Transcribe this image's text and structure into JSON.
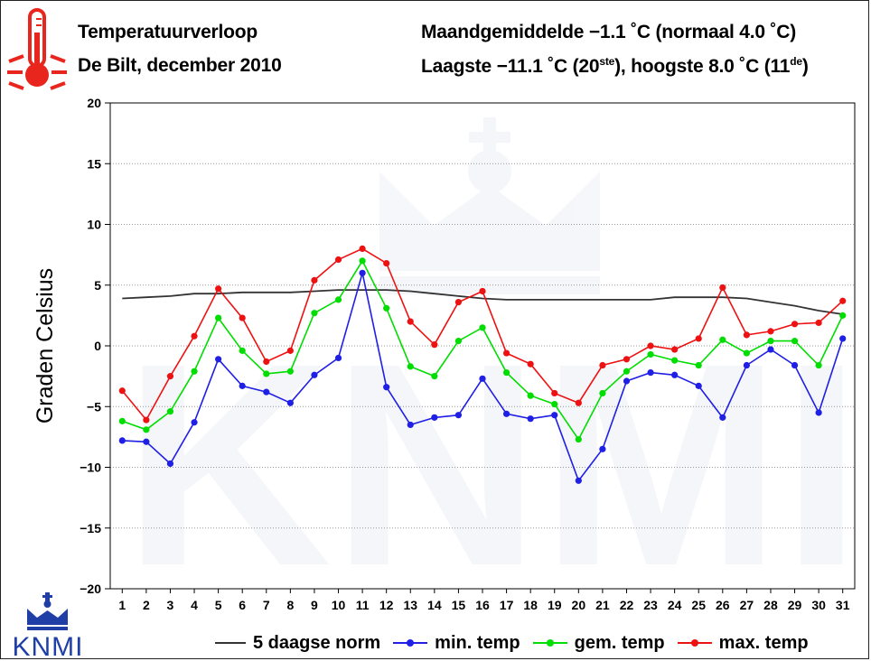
{
  "header": {
    "title": "Temperatuurverloop",
    "subtitle": "De Bilt, december 2010",
    "stats_line1": "Maandgemiddelde −1.1 ˚C (normaal 4.0 ˚C)",
    "stats_line2_pre": "Laagste −11.1 ˚C (20",
    "stats_line2_sup1": "ste",
    "stats_line2_mid": "), hoogste 8.0 ˚C (11",
    "stats_line2_sup2": "de",
    "stats_line2_post": ")"
  },
  "logo": {
    "text": "KNMI",
    "icon": "crown-icon",
    "color": "#1f3fa6"
  },
  "thermometer": {
    "icon": "thermometer-icon",
    "color": "#e8261e"
  },
  "chart_data": {
    "type": "line",
    "title": "",
    "ylabel": "Graden Celsius",
    "xlabel": "",
    "ylim": [
      -20,
      20
    ],
    "yticks": [
      20,
      15,
      10,
      5,
      0,
      -5,
      -10,
      -15,
      -20
    ],
    "x": [
      1,
      2,
      3,
      4,
      5,
      6,
      7,
      8,
      9,
      10,
      11,
      12,
      13,
      14,
      15,
      16,
      17,
      18,
      19,
      20,
      21,
      22,
      23,
      24,
      25,
      26,
      27,
      28,
      29,
      30,
      31
    ],
    "grid": true,
    "legend_position": "bottom",
    "series": [
      {
        "name": "5 daagse norm",
        "color": "#333333",
        "markers": false,
        "values": [
          3.9,
          4.0,
          4.1,
          4.3,
          4.3,
          4.4,
          4.4,
          4.4,
          4.5,
          4.6,
          4.6,
          4.6,
          4.5,
          4.3,
          4.1,
          3.9,
          3.8,
          3.8,
          3.8,
          3.8,
          3.8,
          3.8,
          3.8,
          4.0,
          4.0,
          4.0,
          3.9,
          3.6,
          3.3,
          2.9,
          2.6
        ]
      },
      {
        "name": "min. temp",
        "color": "#1f1fe6",
        "markers": true,
        "values": [
          -7.8,
          -7.9,
          -9.7,
          -6.3,
          -1.1,
          -3.3,
          -3.8,
          -4.7,
          -2.4,
          -1.0,
          6.0,
          -3.4,
          -6.5,
          -5.9,
          -5.7,
          -2.7,
          -5.6,
          -6.0,
          -5.7,
          -11.1,
          -8.5,
          -2.9,
          -2.2,
          -2.4,
          -3.3,
          -5.9,
          -1.6,
          -0.3,
          -1.6,
          -5.5,
          0.6
        ]
      },
      {
        "name": "gem. temp",
        "color": "#00dd00",
        "markers": true,
        "values": [
          -6.2,
          -6.9,
          -5.4,
          -2.1,
          2.3,
          -0.4,
          -2.3,
          -2.1,
          2.7,
          3.8,
          7.0,
          3.1,
          -1.7,
          -2.5,
          0.4,
          1.5,
          -2.2,
          -4.1,
          -4.8,
          -7.7,
          -3.9,
          -2.1,
          -0.7,
          -1.2,
          -1.6,
          0.5,
          -0.6,
          0.4,
          0.4,
          -1.6,
          2.5
        ]
      },
      {
        "name": "max. temp",
        "color": "#ee1111",
        "markers": true,
        "values": [
          -3.7,
          -6.1,
          -2.5,
          0.8,
          4.7,
          2.3,
          -1.3,
          -0.4,
          5.4,
          7.1,
          8.0,
          6.8,
          2.0,
          0.1,
          3.6,
          4.5,
          -0.6,
          -1.5,
          -3.9,
          -4.7,
          -1.6,
          -1.1,
          0.0,
          -0.3,
          0.6,
          4.8,
          0.9,
          1.2,
          1.8,
          1.9,
          3.7
        ]
      }
    ]
  }
}
